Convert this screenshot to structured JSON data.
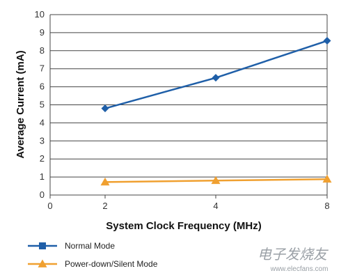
{
  "chart_data": {
    "type": "line",
    "x": [
      2,
      4,
      8
    ],
    "x_tick_labels": [
      "0",
      "2",
      "4",
      "8"
    ],
    "xlabel": "System Clock Frequency (MHz)",
    "ylabel": "Average Current (mA)",
    "ylim": [
      0,
      10
    ],
    "y_ticks": [
      0,
      1,
      2,
      3,
      4,
      5,
      6,
      7,
      8,
      9,
      10
    ],
    "grid": true,
    "legend_position": "bottom-left",
    "series": [
      {
        "name": "Normal Mode",
        "values": [
          4.8,
          6.5,
          8.55
        ],
        "color": "#1f5fa8",
        "marker": "diamond"
      },
      {
        "name": "Power-down/Silent Mode",
        "values": [
          0.72,
          0.8,
          0.88
        ],
        "color": "#f0a030",
        "marker": "triangle"
      }
    ]
  },
  "watermark": {
    "cn": "电子发烧友",
    "url": "www.elecfans.com"
  }
}
